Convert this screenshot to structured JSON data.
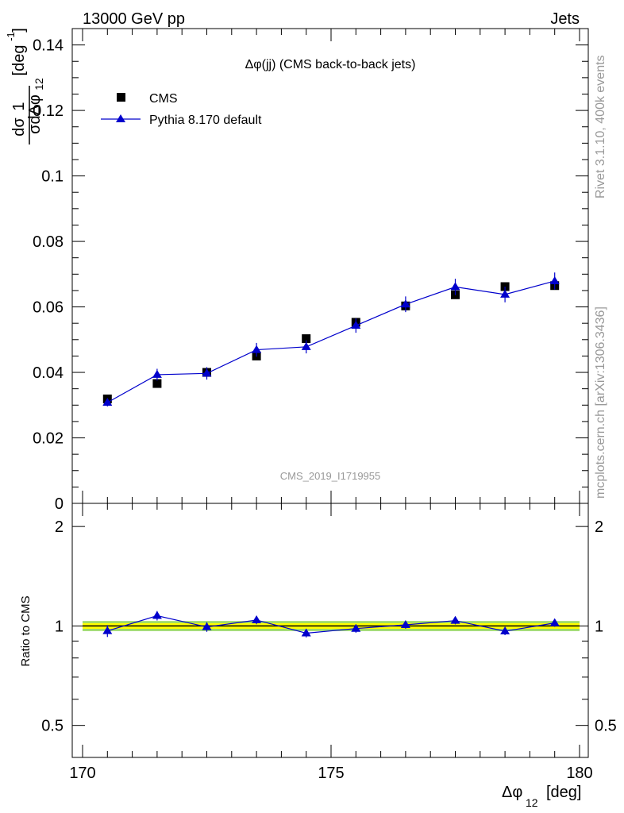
{
  "header": {
    "left": "13000 GeV pp",
    "right": "Jets"
  },
  "side": {
    "rivet": "Rivet 3.1.10,  400k events",
    "mcplots": "mcplots.cern.ch [arXiv:1306.3436]"
  },
  "labels": {
    "y_upper_frac_num": "1",
    "y_upper_dsigma": "dσ",
    "y_upper_den": "σdΔφ",
    "y_upper_den_sub": "12",
    "y_upper_unit": "[deg",
    "y_upper_unit_sup": "-1",
    "y_upper_unit_close": "]",
    "y_ratio": "Ratio to CMS",
    "x_main": "Δφ",
    "x_sub": "12",
    "x_unit": "[deg]",
    "watermark": "CMS_2019_I1719955"
  },
  "colors": {
    "data": "#000000",
    "mc": "#0000cc",
    "band_inner": "#ffff00",
    "band_outer": "#9bd96a",
    "gray_text": "#999999"
  },
  "chart_data": {
    "type": "line",
    "title": "Δφ(jj) (CMS back-to-back jets)",
    "xlabel": "Δφ12 [deg]",
    "ylabel": "1/σ dσ/dΔφ12 [deg^-1]",
    "xlim": [
      170,
      180
    ],
    "ylim": [
      0,
      0.145
    ],
    "x_ticks": [
      170,
      175,
      180
    ],
    "y_ticks": [
      0,
      0.02,
      0.04,
      0.06,
      0.08,
      0.1,
      0.12,
      0.14
    ],
    "y_tick_labels": [
      "0",
      "0.02",
      "0.04",
      "0.06",
      "0.08",
      "0.1",
      "0.12",
      "0.14"
    ],
    "legend": {
      "position": "top-left",
      "entries": [
        "CMS",
        "Pythia 8.170 default"
      ]
    },
    "x": [
      170.5,
      171.5,
      172.5,
      173.5,
      174.5,
      175.5,
      176.5,
      177.5,
      178.5,
      179.5
    ],
    "series": [
      {
        "name": "CMS",
        "marker": "square",
        "values": [
          0.0319,
          0.0366,
          0.04,
          0.045,
          0.0503,
          0.0553,
          0.0603,
          0.0637,
          0.0662,
          0.0665
        ],
        "errors": [
          0.0005,
          0.0005,
          0.0006,
          0.0006,
          0.0006,
          0.0006,
          0.0007,
          0.0007,
          0.0007,
          0.0007
        ]
      },
      {
        "name": "Pythia 8.170 default",
        "marker": "triangle",
        "values": [
          0.0308,
          0.0393,
          0.0397,
          0.0469,
          0.0478,
          0.0543,
          0.0608,
          0.0661,
          0.0638,
          0.0679
        ],
        "errors": [
          0.0012,
          0.0018,
          0.0019,
          0.0021,
          0.002,
          0.0022,
          0.0024,
          0.0025,
          0.0024,
          0.0026
        ]
      }
    ],
    "ratio": {
      "ylabel": "Ratio to CMS",
      "ylim": [
        0.4,
        2.35
      ],
      "log": true,
      "y_ticks": [
        0.5,
        1,
        2
      ],
      "y_tick_labels": [
        "0.5",
        "1",
        "2"
      ],
      "values": [
        0.966,
        1.074,
        0.993,
        1.042,
        0.951,
        0.982,
        1.008,
        1.038,
        0.964,
        1.021
      ],
      "errors": [
        0.04,
        0.035,
        0.033,
        0.03,
        0.028,
        0.028,
        0.027,
        0.027,
        0.026,
        0.027
      ],
      "band_inner": 0.02,
      "band_outer": 0.035
    }
  }
}
